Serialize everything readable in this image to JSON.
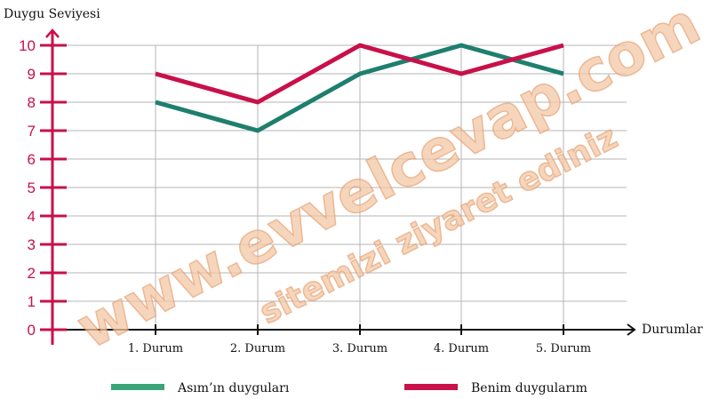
{
  "chart_data": {
    "type": "line",
    "ylabel": "Duygu Seviyesi",
    "xlabel": "Durumlar",
    "categories": [
      "1. Durum",
      "2. Durum",
      "3. Durum",
      "4. Durum",
      "5. Durum"
    ],
    "ylim": [
      0,
      10
    ],
    "yticks": [
      "0",
      "1",
      "2",
      "3",
      "4",
      "5",
      "6",
      "7",
      "8",
      "9",
      "10"
    ],
    "grid": true,
    "legend_position": "bottom",
    "series": [
      {
        "name": "Asım’ın duyguları",
        "values": [
          8,
          7,
          9,
          10,
          9
        ],
        "color": "#1e7f6e",
        "legend_color": "#3aa57a"
      },
      {
        "name": "Benim duygularım",
        "values": [
          9,
          8,
          10,
          9,
          10
        ],
        "color": "#c8104a",
        "legend_color": "#c8104a"
      }
    ],
    "axis_color": "#c8104a"
  },
  "watermark": {
    "line1": "www.evvelcevap.com",
    "line2": "sitemizi ziyaret ediniz"
  }
}
